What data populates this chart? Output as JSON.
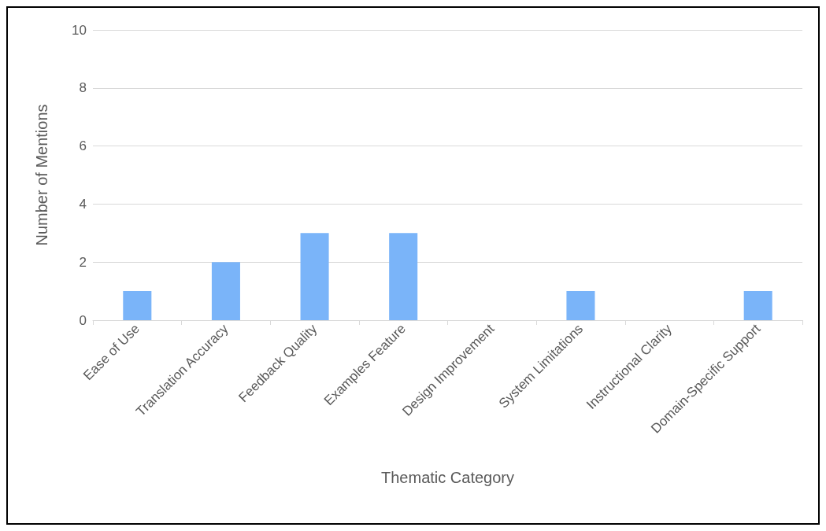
{
  "chart_data": {
    "type": "bar",
    "categories": [
      "Ease of Use",
      "Translation Accuracy",
      "Feedback Quality",
      "Examples Feature",
      "Design Improvement",
      "System Limitations",
      "Instructional Clarity",
      "Domain-Specific Support"
    ],
    "values": [
      1,
      2,
      3,
      3,
      0,
      1,
      0,
      1
    ],
    "color": "#7ab4f9",
    "xlabel": "Thematic Category",
    "ylabel": "Number of Mentions",
    "ylim": [
      0,
      10
    ],
    "yticks": [
      0,
      2,
      4,
      6,
      8,
      10
    ],
    "grid": "y"
  }
}
